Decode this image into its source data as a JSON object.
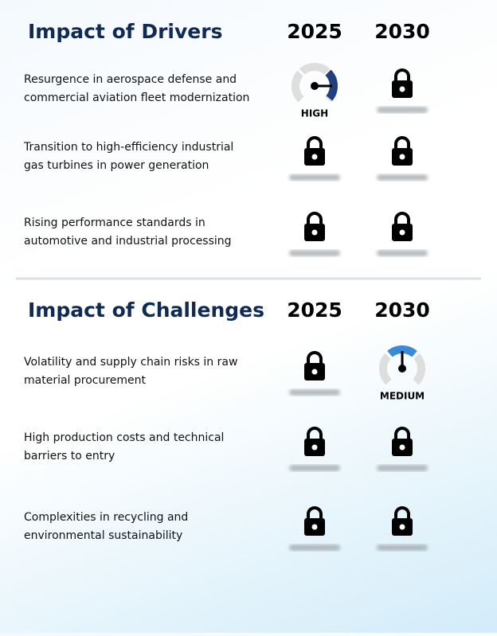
{
  "sections": [
    {
      "title": "Impact of Drivers",
      "years": [
        "2025",
        "2030"
      ],
      "rows": [
        {
          "label": [
            "Resurgence in aerospace defense and",
            "commercial aviation fleet modernization"
          ],
          "cells": [
            {
              "gauge": {
                "label": "HIGH",
                "color": "#213f7d",
                "level": "right"
              }
            },
            {
              "locked": true
            }
          ]
        },
        {
          "label": [
            "Transition to high-efficiency industrial",
            "gas turbines in power generation"
          ],
          "cells": [
            {
              "locked": true
            },
            {
              "locked": true
            }
          ]
        },
        {
          "label": [
            "Rising performance standards in",
            "automotive and industrial processing"
          ],
          "cells": [
            {
              "locked": true
            },
            {
              "locked": true
            }
          ]
        }
      ]
    },
    {
      "title": "Impact of Challenges",
      "years": [
        "2025",
        "2030"
      ],
      "rows": [
        {
          "label": [
            "Volatility and supply chain risks in raw",
            "material procurement"
          ],
          "cells": [
            {
              "locked": true
            },
            {
              "gauge": {
                "label": "MEDIUM",
                "color": "#3a8ad6",
                "level": "top"
              }
            }
          ]
        },
        {
          "label": [
            "High production costs and technical",
            "barriers to entry"
          ],
          "cells": [
            {
              "locked": true
            },
            {
              "locked": true
            }
          ]
        },
        {
          "label": [
            "Complexities in recycling and",
            "environmental sustainability"
          ],
          "cells": [
            {
              "locked": true
            },
            {
              "locked": true
            }
          ]
        }
      ]
    }
  ]
}
